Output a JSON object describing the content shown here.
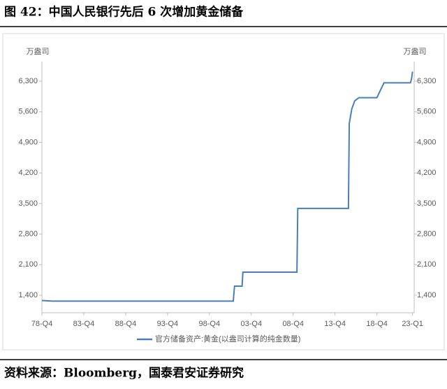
{
  "chart_data": {
    "type": "line",
    "title": "图 42：中国人民银行先后 6 次增加黄金储备",
    "source": "资料来源：Bloomberg，国泰君安证券研究",
    "ylabel": "万盎司",
    "y2label": "万盎司",
    "x": [
      1978.75,
      1980.0,
      2001.6,
      2001.75,
      2002.65,
      2002.75,
      2009.2,
      2009.3,
      2015.35,
      2015.45,
      2015.75,
      2016.1,
      2016.6,
      2018.75,
      2019.0,
      2019.6,
      2022.75,
      2022.9,
      2023.0
    ],
    "series": [
      {
        "name": "官方储备资产:黄金(以盎司计算的纯金数量)",
        "color": "#4a7ebb",
        "values": [
          1280,
          1267,
          1267,
          1608,
          1608,
          1929,
          1929,
          3389,
          3389,
          5331,
          5666,
          5850,
          5924,
          5924,
          6026,
          6264,
          6264,
          6367,
          6520
        ]
      }
    ],
    "xlim": [
      1978.75,
      2023.2
    ],
    "xticks": [
      {
        "value": 1978.75,
        "label": "78-Q4"
      },
      {
        "value": 1983.75,
        "label": "83-Q4"
      },
      {
        "value": 1988.75,
        "label": "88-Q4"
      },
      {
        "value": 1993.75,
        "label": "93-Q4"
      },
      {
        "value": 1998.75,
        "label": "98-Q4"
      },
      {
        "value": 2003.75,
        "label": "03-Q4"
      },
      {
        "value": 2008.75,
        "label": "08-Q4"
      },
      {
        "value": 2013.75,
        "label": "13-Q4"
      },
      {
        "value": 2018.75,
        "label": "18-Q4"
      },
      {
        "value": 2023.0,
        "label": "23-Q1"
      }
    ],
    "ylim": [
      1000,
      6750
    ],
    "yticks": [
      {
        "value": 1400,
        "label": "1,400"
      },
      {
        "value": 2100,
        "label": "2,100"
      },
      {
        "value": 2800,
        "label": "2,800"
      },
      {
        "value": 3500,
        "label": "3,500"
      },
      {
        "value": 4200,
        "label": "4,200"
      },
      {
        "value": 4900,
        "label": "4,900"
      },
      {
        "value": 5600,
        "label": "5,600"
      },
      {
        "value": 6300,
        "label": "6,300"
      }
    ],
    "y2lim": [
      1000,
      6750
    ],
    "y2ticks": [
      {
        "value": 1400,
        "label": "1,400"
      },
      {
        "value": 2100,
        "label": "2,100"
      },
      {
        "value": 2800,
        "label": "2,800"
      },
      {
        "value": 3500,
        "label": "3,500"
      },
      {
        "value": 4200,
        "label": "4,200"
      },
      {
        "value": 4900,
        "label": "4,900"
      },
      {
        "value": 5600,
        "label": "5,600"
      },
      {
        "value": 6300,
        "label": "6,300"
      }
    ],
    "grid": false
  }
}
